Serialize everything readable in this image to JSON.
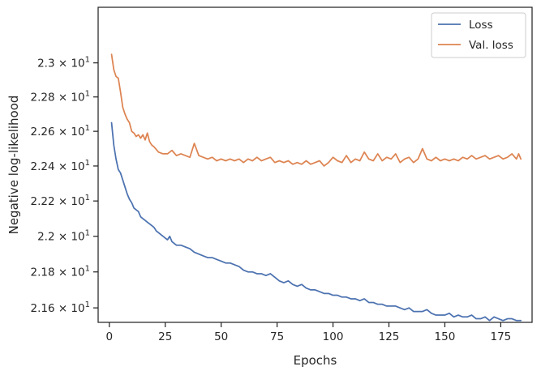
{
  "chart_data": {
    "type": "line",
    "xlabel": "Epochs",
    "ylabel": "Negative log-likelihood",
    "xlim": [
      -5,
      189
    ],
    "ylim": [
      21.52,
      23.33
    ],
    "y_scale": "log",
    "grid": false,
    "legend_position": "top-right",
    "x_ticks": [
      0,
      25,
      50,
      75,
      100,
      125,
      150,
      175
    ],
    "x_tick_labels": [
      "0",
      "25",
      "50",
      "75",
      "100",
      "125",
      "150",
      "175"
    ],
    "y_ticks": [
      21.6,
      21.8,
      22.0,
      22.2,
      22.4,
      22.6,
      22.8,
      23.0
    ],
    "y_tick_labels": [
      {
        "mantissa": "2.16",
        "exponent": "1"
      },
      {
        "mantissa": "2.18",
        "exponent": "1"
      },
      {
        "mantissa": "2.2",
        "exponent": "1"
      },
      {
        "mantissa": "2.22",
        "exponent": "1"
      },
      {
        "mantissa": "2.24",
        "exponent": "1"
      },
      {
        "mantissa": "2.26",
        "exponent": "1"
      },
      {
        "mantissa": "2.28",
        "exponent": "1"
      },
      {
        "mantissa": "2.3",
        "exponent": "1"
      }
    ],
    "series": [
      {
        "name": "Loss",
        "color": "#4c72b0",
        "points": [
          [
            1,
            22.65
          ],
          [
            2,
            22.52
          ],
          [
            3,
            22.44
          ],
          [
            4,
            22.38
          ],
          [
            5,
            22.36
          ],
          [
            6,
            22.32
          ],
          [
            7,
            22.28
          ],
          [
            8,
            22.24
          ],
          [
            9,
            22.21
          ],
          [
            10,
            22.19
          ],
          [
            11,
            22.16
          ],
          [
            12,
            22.15
          ],
          [
            13,
            22.14
          ],
          [
            14,
            22.11
          ],
          [
            15,
            22.1
          ],
          [
            16,
            22.09
          ],
          [
            17,
            22.08
          ],
          [
            18,
            22.07
          ],
          [
            19,
            22.06
          ],
          [
            20,
            22.05
          ],
          [
            21,
            22.03
          ],
          [
            22,
            22.02
          ],
          [
            23,
            22.01
          ],
          [
            24,
            22.0
          ],
          [
            25,
            21.99
          ],
          [
            26,
            21.98
          ],
          [
            27,
            22.0
          ],
          [
            28,
            21.97
          ],
          [
            29,
            21.96
          ],
          [
            30,
            21.95
          ],
          [
            32,
            21.95
          ],
          [
            34,
            21.94
          ],
          [
            36,
            21.93
          ],
          [
            38,
            21.91
          ],
          [
            40,
            21.9
          ],
          [
            42,
            21.89
          ],
          [
            44,
            21.88
          ],
          [
            46,
            21.88
          ],
          [
            48,
            21.87
          ],
          [
            50,
            21.86
          ],
          [
            52,
            21.85
          ],
          [
            54,
            21.85
          ],
          [
            56,
            21.84
          ],
          [
            58,
            21.83
          ],
          [
            60,
            21.81
          ],
          [
            62,
            21.8
          ],
          [
            64,
            21.8
          ],
          [
            66,
            21.79
          ],
          [
            68,
            21.79
          ],
          [
            70,
            21.78
          ],
          [
            72,
            21.79
          ],
          [
            74,
            21.77
          ],
          [
            76,
            21.75
          ],
          [
            78,
            21.74
          ],
          [
            80,
            21.75
          ],
          [
            82,
            21.73
          ],
          [
            84,
            21.72
          ],
          [
            86,
            21.73
          ],
          [
            88,
            21.71
          ],
          [
            90,
            21.7
          ],
          [
            92,
            21.7
          ],
          [
            94,
            21.69
          ],
          [
            96,
            21.68
          ],
          [
            98,
            21.68
          ],
          [
            100,
            21.67
          ],
          [
            102,
            21.67
          ],
          [
            104,
            21.66
          ],
          [
            106,
            21.66
          ],
          [
            108,
            21.65
          ],
          [
            110,
            21.65
          ],
          [
            112,
            21.64
          ],
          [
            114,
            21.65
          ],
          [
            116,
            21.63
          ],
          [
            118,
            21.63
          ],
          [
            120,
            21.62
          ],
          [
            122,
            21.62
          ],
          [
            124,
            21.61
          ],
          [
            126,
            21.61
          ],
          [
            128,
            21.61
          ],
          [
            130,
            21.6
          ],
          [
            132,
            21.59
          ],
          [
            134,
            21.6
          ],
          [
            136,
            21.58
          ],
          [
            138,
            21.58
          ],
          [
            140,
            21.58
          ],
          [
            142,
            21.59
          ],
          [
            144,
            21.57
          ],
          [
            146,
            21.56
          ],
          [
            148,
            21.56
          ],
          [
            150,
            21.56
          ],
          [
            152,
            21.57
          ],
          [
            154,
            21.55
          ],
          [
            156,
            21.56
          ],
          [
            158,
            21.55
          ],
          [
            160,
            21.55
          ],
          [
            162,
            21.56
          ],
          [
            164,
            21.54
          ],
          [
            166,
            21.54
          ],
          [
            168,
            21.55
          ],
          [
            170,
            21.53
          ],
          [
            172,
            21.55
          ],
          [
            174,
            21.54
          ],
          [
            176,
            21.53
          ],
          [
            178,
            21.54
          ],
          [
            180,
            21.54
          ],
          [
            182,
            21.53
          ],
          [
            184,
            21.53
          ]
        ]
      },
      {
        "name": "Val. loss",
        "color": "#dd8452",
        "points": [
          [
            1,
            23.05
          ],
          [
            2,
            22.96
          ],
          [
            3,
            22.92
          ],
          [
            4,
            22.91
          ],
          [
            5,
            22.83
          ],
          [
            6,
            22.74
          ],
          [
            7,
            22.7
          ],
          [
            8,
            22.67
          ],
          [
            9,
            22.65
          ],
          [
            10,
            22.6
          ],
          [
            11,
            22.59
          ],
          [
            12,
            22.57
          ],
          [
            13,
            22.58
          ],
          [
            14,
            22.56
          ],
          [
            15,
            22.58
          ],
          [
            16,
            22.55
          ],
          [
            17,
            22.59
          ],
          [
            18,
            22.54
          ],
          [
            19,
            22.52
          ],
          [
            20,
            22.51
          ],
          [
            22,
            22.48
          ],
          [
            24,
            22.47
          ],
          [
            26,
            22.47
          ],
          [
            28,
            22.49
          ],
          [
            30,
            22.46
          ],
          [
            32,
            22.47
          ],
          [
            34,
            22.46
          ],
          [
            36,
            22.45
          ],
          [
            38,
            22.53
          ],
          [
            40,
            22.46
          ],
          [
            42,
            22.45
          ],
          [
            44,
            22.44
          ],
          [
            46,
            22.45
          ],
          [
            48,
            22.43
          ],
          [
            50,
            22.44
          ],
          [
            52,
            22.43
          ],
          [
            54,
            22.44
          ],
          [
            56,
            22.43
          ],
          [
            58,
            22.44
          ],
          [
            60,
            22.42
          ],
          [
            62,
            22.44
          ],
          [
            64,
            22.43
          ],
          [
            66,
            22.45
          ],
          [
            68,
            22.43
          ],
          [
            70,
            22.44
          ],
          [
            72,
            22.45
          ],
          [
            74,
            22.42
          ],
          [
            76,
            22.43
          ],
          [
            78,
            22.42
          ],
          [
            80,
            22.43
          ],
          [
            82,
            22.41
          ],
          [
            84,
            22.42
          ],
          [
            86,
            22.41
          ],
          [
            88,
            22.43
          ],
          [
            90,
            22.41
          ],
          [
            92,
            22.42
          ],
          [
            94,
            22.43
          ],
          [
            96,
            22.4
          ],
          [
            98,
            22.42
          ],
          [
            100,
            22.45
          ],
          [
            102,
            22.43
          ],
          [
            104,
            22.42
          ],
          [
            106,
            22.46
          ],
          [
            108,
            22.42
          ],
          [
            110,
            22.44
          ],
          [
            112,
            22.43
          ],
          [
            114,
            22.48
          ],
          [
            116,
            22.44
          ],
          [
            118,
            22.43
          ],
          [
            120,
            22.47
          ],
          [
            122,
            22.43
          ],
          [
            124,
            22.45
          ],
          [
            126,
            22.44
          ],
          [
            128,
            22.47
          ],
          [
            130,
            22.42
          ],
          [
            132,
            22.44
          ],
          [
            134,
            22.45
          ],
          [
            136,
            22.42
          ],
          [
            138,
            22.44
          ],
          [
            140,
            22.5
          ],
          [
            142,
            22.44
          ],
          [
            144,
            22.43
          ],
          [
            146,
            22.45
          ],
          [
            148,
            22.43
          ],
          [
            150,
            22.44
          ],
          [
            152,
            22.43
          ],
          [
            154,
            22.44
          ],
          [
            156,
            22.43
          ],
          [
            158,
            22.45
          ],
          [
            160,
            22.44
          ],
          [
            162,
            22.46
          ],
          [
            164,
            22.44
          ],
          [
            166,
            22.45
          ],
          [
            168,
            22.46
          ],
          [
            170,
            22.44
          ],
          [
            172,
            22.45
          ],
          [
            174,
            22.46
          ],
          [
            176,
            22.44
          ],
          [
            178,
            22.45
          ],
          [
            180,
            22.47
          ],
          [
            182,
            22.44
          ],
          [
            183,
            22.47
          ],
          [
            184,
            22.44
          ]
        ]
      }
    ]
  }
}
